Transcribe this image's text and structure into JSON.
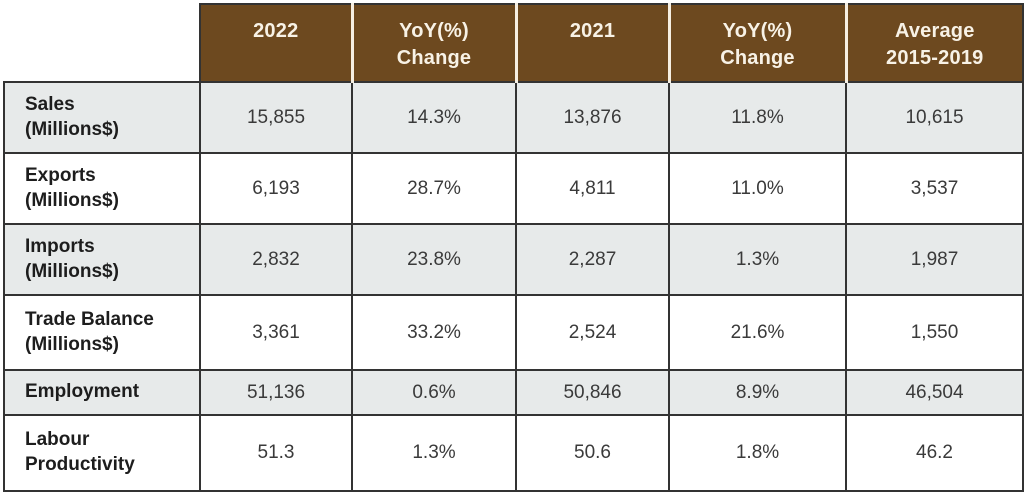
{
  "colors": {
    "header_bg": "#6d491f",
    "header_text": "#f8f2e6",
    "alt_row_bg": "#e7eaea",
    "border": "#333333"
  },
  "chart_data": {
    "type": "table",
    "columns": [
      "",
      "2022",
      "YoY(%) Change",
      "2021",
      "YoY(%) Change",
      "Average 2015-2019"
    ],
    "rows": [
      [
        "Sales (Millions$)",
        "15,855",
        "14.3%",
        "13,876",
        "11.8%",
        "10,615"
      ],
      [
        "Exports (Millions$)",
        "6,193",
        "28.7%",
        "4,811",
        "11.0%",
        "3,537"
      ],
      [
        "Imports (Millions$)",
        "2,832",
        "23.8%",
        "2,287",
        "1.3%",
        "1,987"
      ],
      [
        "Trade Balance (Millions$)",
        "3,361",
        "33.2%",
        "2,524",
        "21.6%",
        "1,550"
      ],
      [
        "Employment",
        "51,136",
        "0.6%",
        "50,846",
        "8.9%",
        "46,504"
      ],
      [
        "Labour Productivity",
        "51.3",
        "1.3%",
        "50.6",
        "1.8%",
        "46.2"
      ]
    ]
  },
  "table": {
    "headers": [
      {
        "line1": "2022",
        "line2": ""
      },
      {
        "line1": "YoY(%)",
        "line2": "Change"
      },
      {
        "line1": "2021",
        "line2": ""
      },
      {
        "line1": "YoY(%)",
        "line2": "Change"
      },
      {
        "line1": "Average",
        "line2": "2015-2019"
      }
    ],
    "rows": [
      {
        "label": "Sales",
        "unit": "(Millions$)",
        "values": [
          "15,855",
          "14.3%",
          "13,876",
          "11.8%",
          "10,615"
        ]
      },
      {
        "label": "Exports",
        "unit": "(Millions$)",
        "values": [
          "6,193",
          "28.7%",
          "4,811",
          "11.0%",
          "3,537"
        ]
      },
      {
        "label": "Imports",
        "unit": "(Millions$)",
        "values": [
          "2,832",
          "23.8%",
          "2,287",
          "1.3%",
          "1,987"
        ]
      },
      {
        "label": "Trade Balance",
        "unit": "(Millions$)",
        "values": [
          "3,361",
          "33.2%",
          "2,524",
          "21.6%",
          "1,550"
        ]
      },
      {
        "label": "Employment",
        "unit": "",
        "values": [
          "51,136",
          "0.6%",
          "50,846",
          "8.9%",
          "46,504"
        ]
      },
      {
        "label": "Labour Productivity",
        "unit": "",
        "values": [
          "51.3",
          "1.3%",
          "50.6",
          "1.8%",
          "46.2"
        ]
      }
    ]
  }
}
